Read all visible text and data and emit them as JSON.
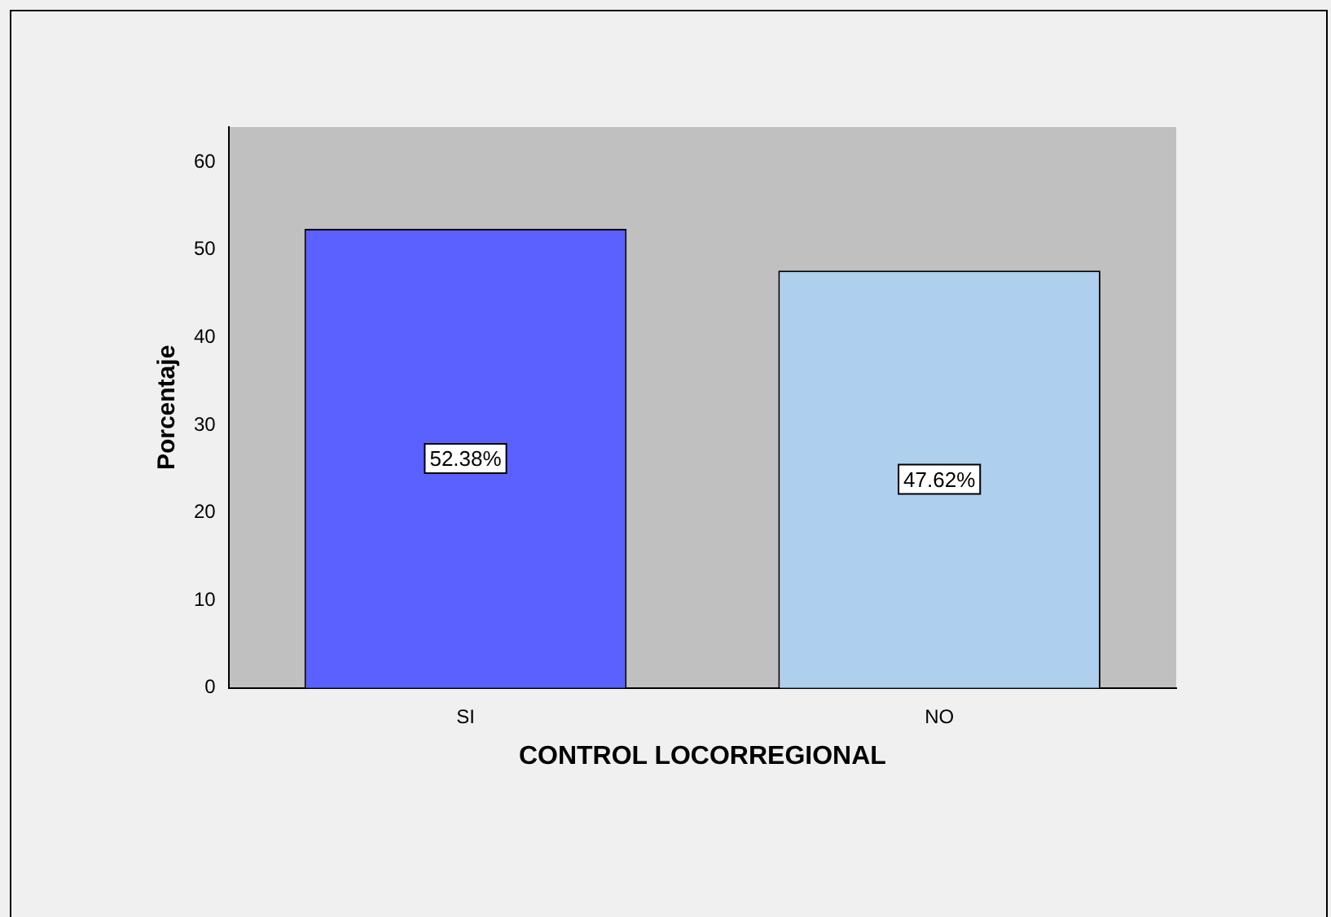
{
  "chart_data": {
    "type": "bar",
    "xlabel": "CONTROL LOCORREGIONAL",
    "ylabel": "Porcentaje",
    "categories": [
      "SI",
      "NO"
    ],
    "values": [
      52.38,
      47.62
    ],
    "colors": [
      "#5b61fe",
      "#aecfee"
    ],
    "value_labels": [
      "52.38%",
      "47.62%"
    ],
    "ylim": [
      0,
      64
    ],
    "yticks": [
      0,
      10,
      20,
      30,
      40,
      50,
      60
    ],
    "grid": false,
    "legend": false
  }
}
